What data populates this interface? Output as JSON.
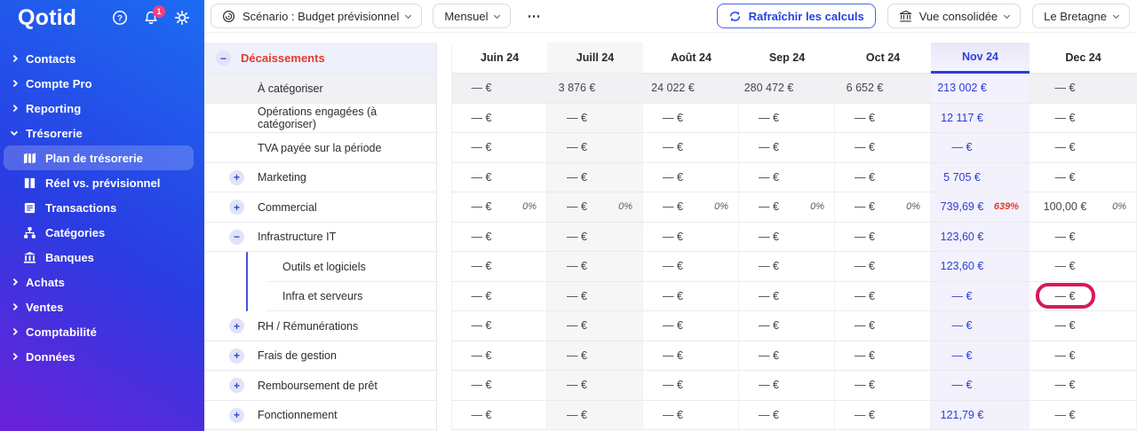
{
  "app": {
    "logo": "Qotid",
    "notification_count": "1"
  },
  "sidebar": {
    "items": [
      {
        "label": "Contacts",
        "expanded": false
      },
      {
        "label": "Compte Pro",
        "expanded": false
      },
      {
        "label": "Reporting",
        "expanded": false
      },
      {
        "label": "Trésorerie",
        "expanded": true,
        "children": [
          {
            "label": "Plan de trésorerie",
            "icon": "map-icon",
            "active": true
          },
          {
            "label": "Réel vs. prévisionnel",
            "icon": "book-icon",
            "active": false
          },
          {
            "label": "Transactions",
            "icon": "list-icon",
            "active": false
          },
          {
            "label": "Catégories",
            "icon": "sitemap-icon",
            "active": false
          },
          {
            "label": "Banques",
            "icon": "bank-icon",
            "active": false
          }
        ]
      },
      {
        "label": "Achats",
        "expanded": false
      },
      {
        "label": "Ventes",
        "expanded": false
      },
      {
        "label": "Comptabilité",
        "expanded": false
      },
      {
        "label": "Données",
        "expanded": false
      }
    ]
  },
  "toolbar": {
    "scenario_label": "Scénario : Budget prévisionnel",
    "period_label": "Mensuel",
    "more_label": "⋯",
    "refresh_label": "Rafraîchir les calculs",
    "consolidated_label": "Vue consolidée",
    "entity_label": "Le Bretagne"
  },
  "table": {
    "section_label": "Décaissements",
    "months": [
      "Juin 24",
      "Juill 24",
      "Août 24",
      "Sep 24",
      "Oct 24",
      "Nov 24",
      "Dec 24"
    ],
    "shaded_month_index": 1,
    "highlighted_month_index": 5,
    "rows": [
      {
        "label": "À catégoriser",
        "icon": null,
        "level": 1,
        "shaded": true,
        "values": [
          "— €",
          "3 876 €",
          "24 022 €",
          "280 472 €",
          "6 652 €",
          "213 002 €",
          "— €"
        ]
      },
      {
        "label": "Opérations engagées (à catégoriser)",
        "icon": null,
        "level": 1,
        "values": [
          "— €",
          "— €",
          "— €",
          "— €",
          "— €",
          "12 117 €",
          "— €"
        ]
      },
      {
        "label": "TVA payée sur la période",
        "icon": null,
        "level": 1,
        "values": [
          "— €",
          "— €",
          "— €",
          "— €",
          "— €",
          "— €",
          "— €"
        ]
      },
      {
        "label": "Marketing",
        "icon": "plus",
        "level": 1,
        "values": [
          "— €",
          "— €",
          "— €",
          "— €",
          "— €",
          "5 705 €",
          "— €"
        ]
      },
      {
        "label": "Commercial",
        "icon": "plus",
        "level": 1,
        "values": [
          "— €",
          "— €",
          "— €",
          "— €",
          "— €",
          "739,69 €",
          "100,00 €"
        ],
        "pcts": [
          "0%",
          "0%",
          "0%",
          "0%",
          "0%",
          "639%",
          "0%"
        ],
        "alert_pct_index": 5
      },
      {
        "label": "Infrastructure IT",
        "icon": "minus",
        "level": 1,
        "values": [
          "— €",
          "— €",
          "— €",
          "— €",
          "— €",
          "123,60 €",
          "— €"
        ]
      },
      {
        "label": "Outils et logiciels",
        "icon": null,
        "level": 2,
        "values": [
          "— €",
          "— €",
          "— €",
          "— €",
          "— €",
          "123,60 €",
          "— €"
        ]
      },
      {
        "label": "Infra et serveurs",
        "icon": null,
        "level": 2,
        "values": [
          "— €",
          "— €",
          "— €",
          "— €",
          "— €",
          "— €",
          "— €"
        ]
      },
      {
        "label": "RH / Rémunérations",
        "icon": "plus",
        "level": 1,
        "values": [
          "— €",
          "— €",
          "— €",
          "— €",
          "— €",
          "— €",
          "— €"
        ]
      },
      {
        "label": "Frais de gestion",
        "icon": "plus",
        "level": 1,
        "values": [
          "— €",
          "— €",
          "— €",
          "— €",
          "— €",
          "— €",
          "— €"
        ]
      },
      {
        "label": "Remboursement de prêt",
        "icon": "plus",
        "level": 1,
        "values": [
          "— €",
          "— €",
          "— €",
          "— €",
          "— €",
          "— €",
          "— €"
        ]
      },
      {
        "label": "Fonctionnement",
        "icon": "plus",
        "level": 1,
        "values": [
          "— €",
          "— €",
          "— €",
          "— €",
          "— €",
          "121,79 €",
          "— €"
        ]
      }
    ],
    "annotation": {
      "type": "cell-highlight",
      "row_index": 7,
      "month_index": 6,
      "color": "#d6195e"
    }
  },
  "colors": {
    "accent_blue": "#2742df",
    "alert_red": "#e8392d",
    "annotation_pink": "#d6195e",
    "section_red": "#e23b2e"
  }
}
